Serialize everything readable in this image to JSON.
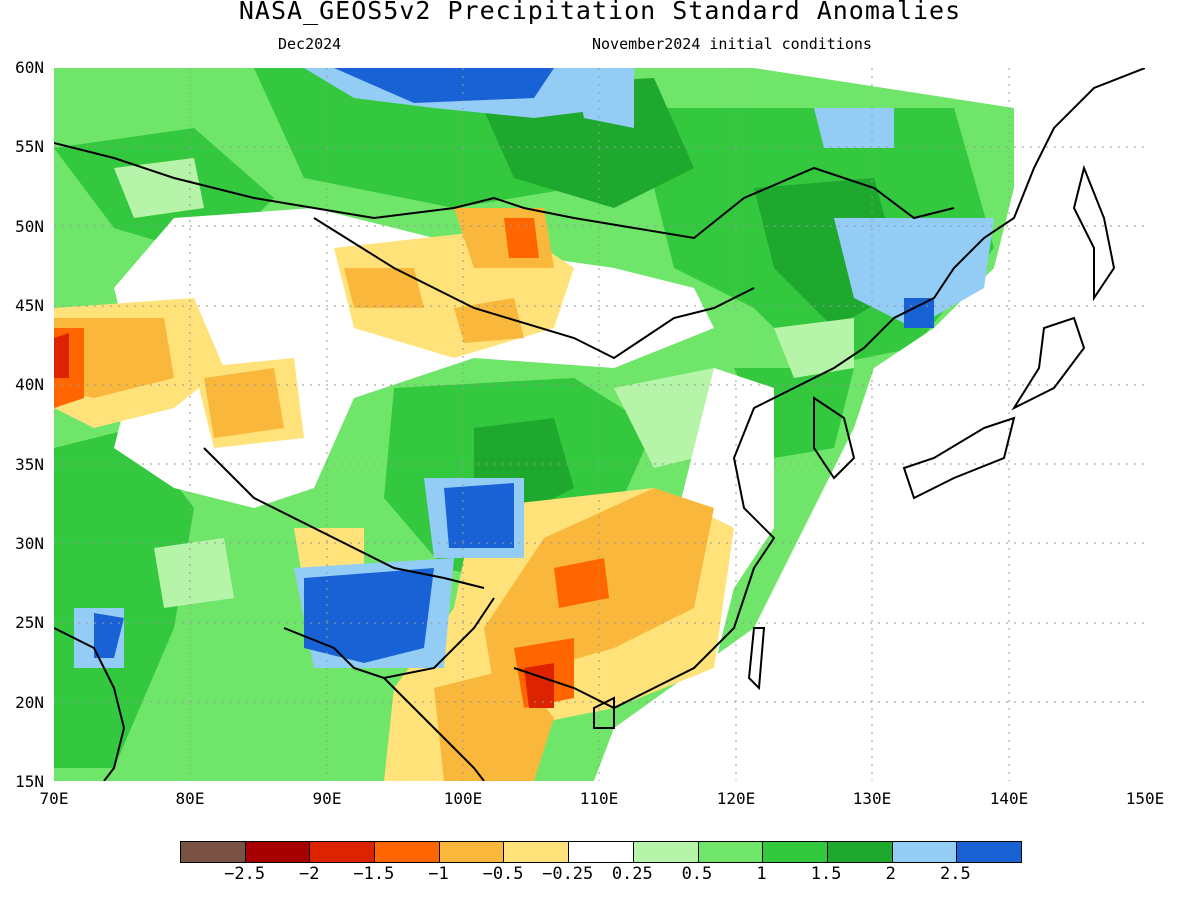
{
  "header": {
    "title": "NASA_GEOS5v2 Precipitation Standard Anomalies",
    "valid_month": "Dec2024",
    "init_conditions": "November2024 initial conditions"
  },
  "axes": {
    "lat_labels": [
      "60N",
      "55N",
      "50N",
      "45N",
      "40N",
      "35N",
      "30N",
      "25N",
      "20N",
      "15N"
    ],
    "lon_labels": [
      "70E",
      "80E",
      "90E",
      "100E",
      "110E",
      "120E",
      "130E",
      "140E",
      "150E"
    ],
    "lat_range": [
      15,
      60
    ],
    "lon_range": [
      70,
      150
    ],
    "grid": "dotted"
  },
  "colorbar": {
    "colors": [
      "#7a5244",
      "#a60000",
      "#dd2200",
      "#ff6600",
      "#f9b73c",
      "#ffe27a",
      "#ffffff",
      "#b6f5a9",
      "#6fe66a",
      "#34c83e",
      "#1ea82e",
      "#93cdf5",
      "#1962d6"
    ],
    "labels": [
      "−2.5",
      "−2",
      "−1.5",
      "−1",
      "−0.5",
      "−0.25",
      "0.25",
      "0.5",
      "1",
      "1.5",
      "2",
      "2.5"
    ]
  }
}
